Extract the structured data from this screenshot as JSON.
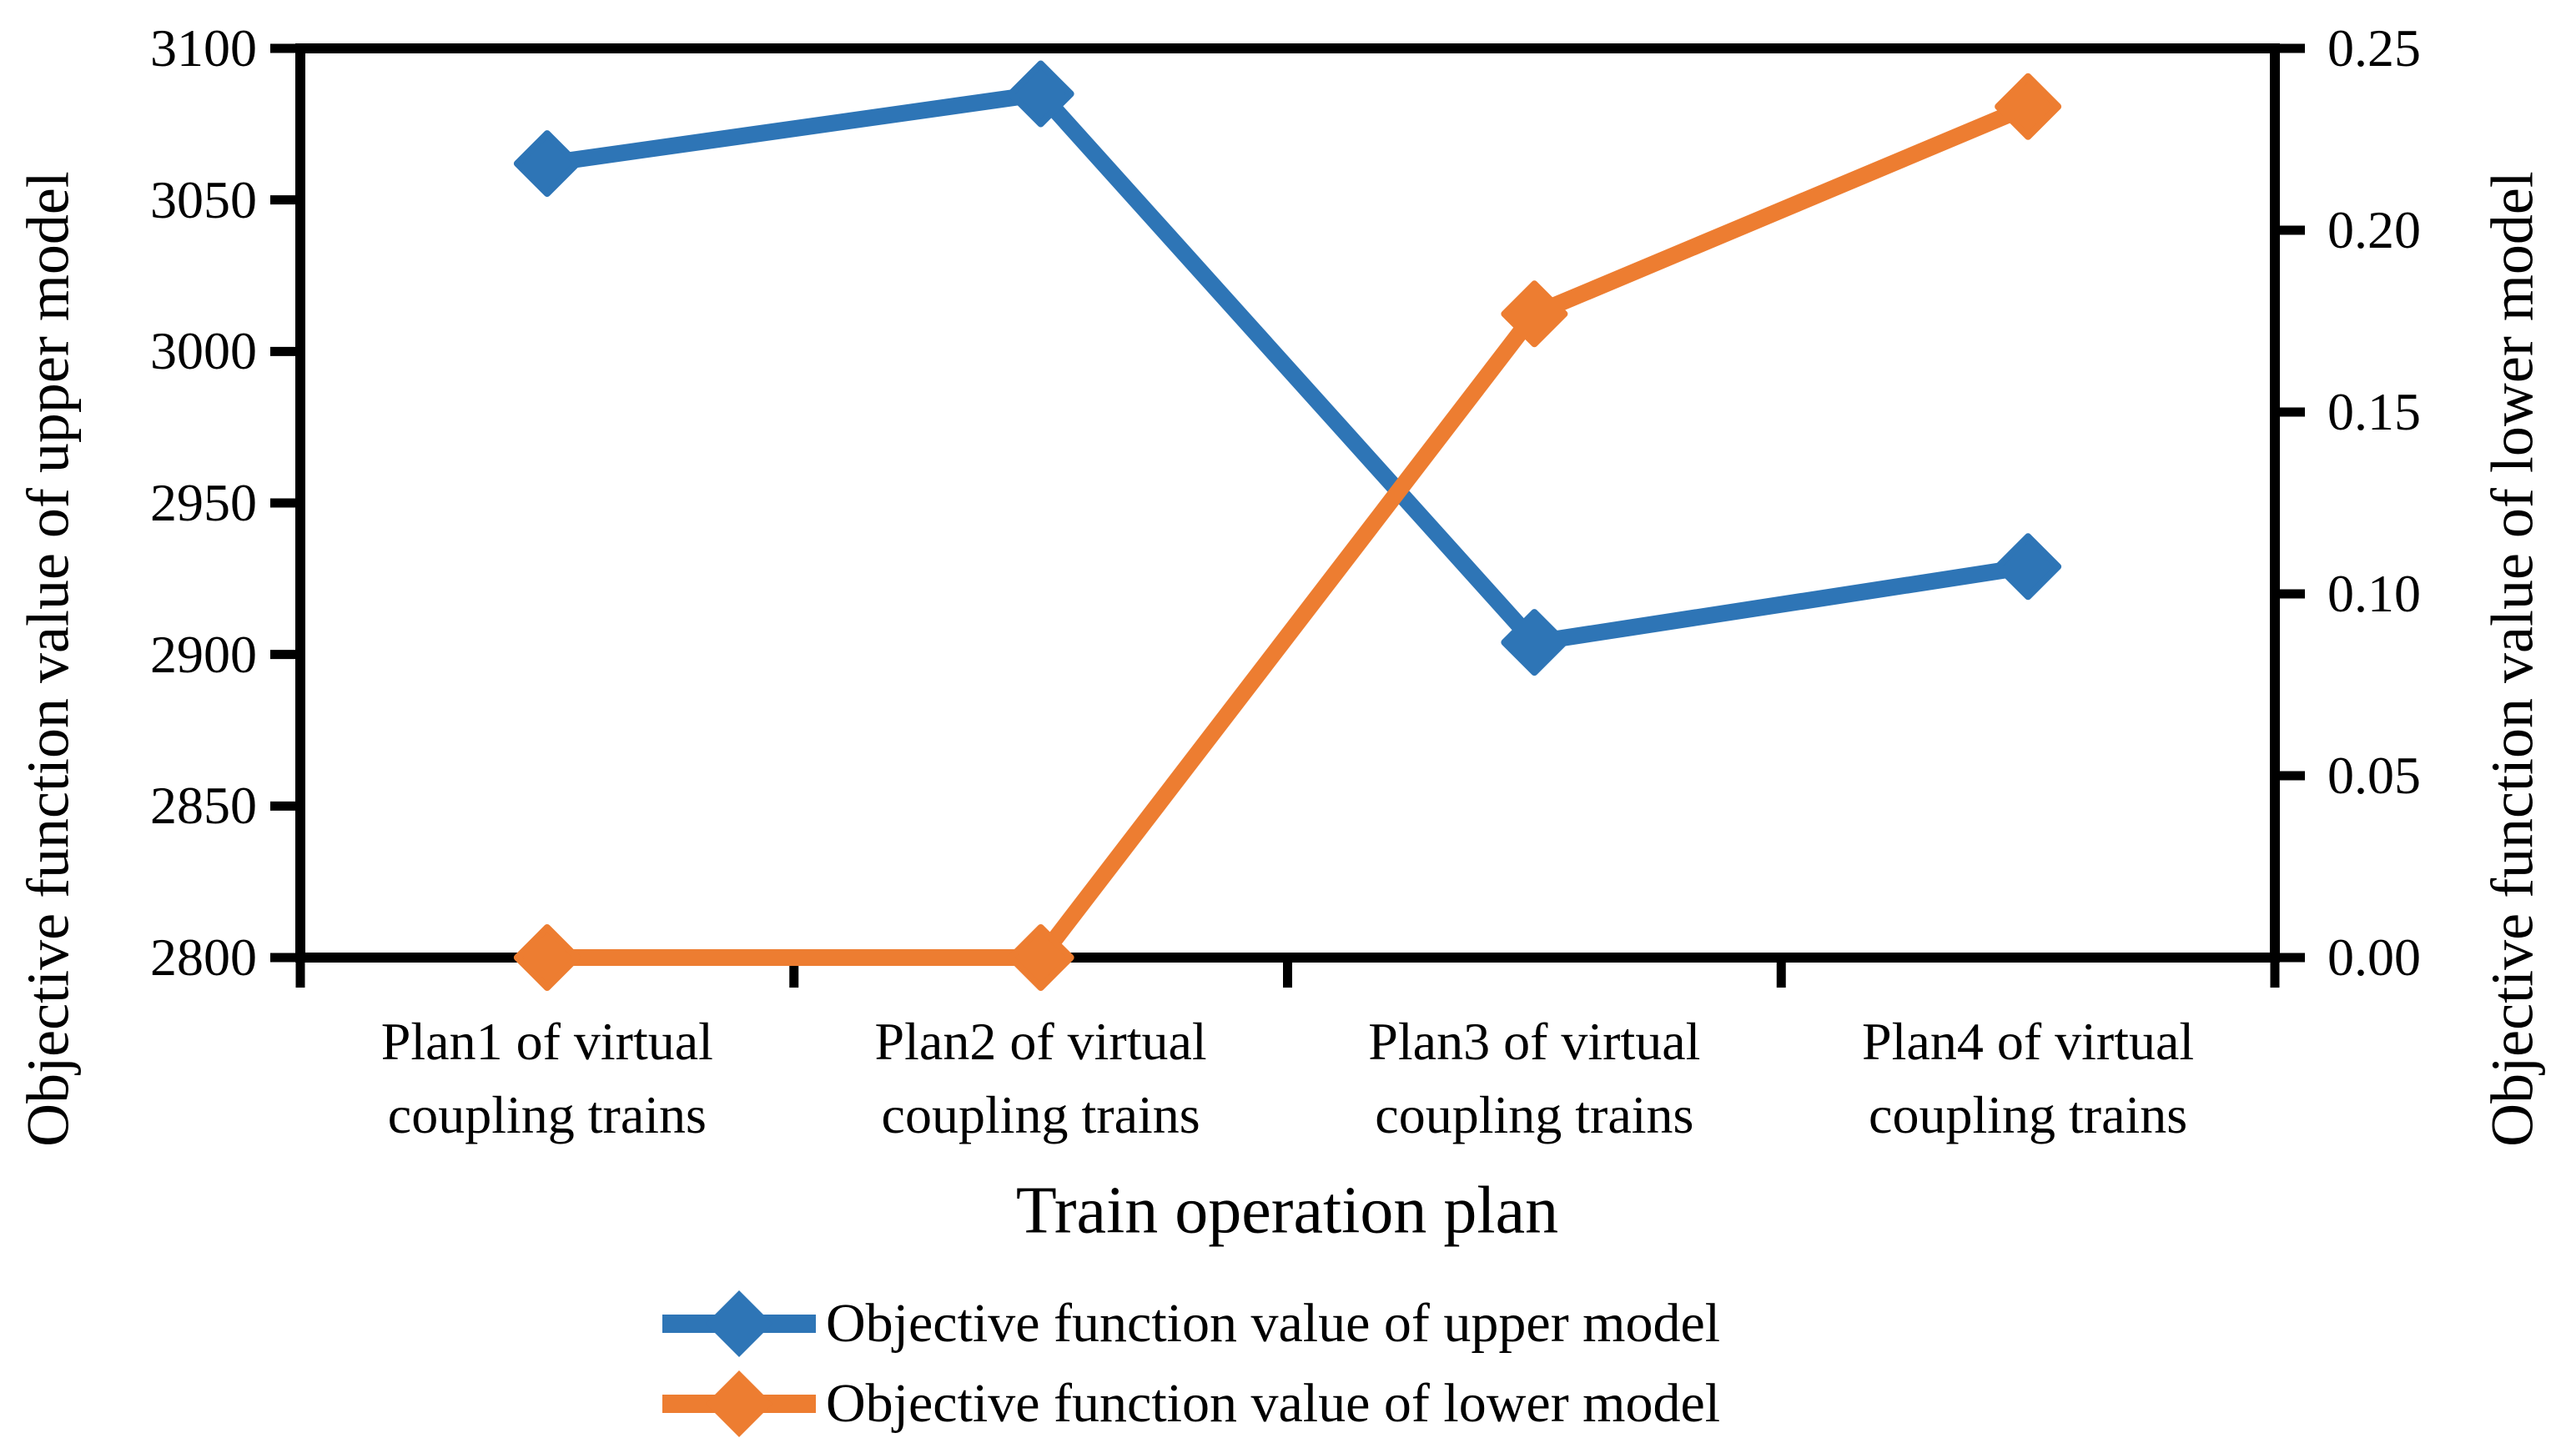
{
  "figure": {
    "background": "#ffffff",
    "axis_color": "#000000",
    "text_color": "#000000"
  },
  "chart_data": {
    "type": "line",
    "grid": false,
    "legend_position": "bottom",
    "x_axis": {
      "title": "Train operation plan",
      "categories": [
        "Plan1 of virtual\ncoupling trains",
        "Plan2 of virtual\ncoupling trains",
        "Plan3 of virtual\ncoupling trains",
        "Plan4 of virtual\ncoupling trains"
      ]
    },
    "left_axis": {
      "title": "Objective function value of upper model",
      "min": 2800,
      "max": 3100,
      "tick_labels": [
        "3100",
        "3050",
        "3000",
        "2950",
        "2900",
        "2850",
        "2800"
      ]
    },
    "right_axis": {
      "title": "Objective function value of lower model",
      "min": 0,
      "max": 0.25,
      "tick_labels": [
        "0.25",
        "0.20",
        "0.15",
        "0.10",
        "0.05",
        "0.00"
      ]
    },
    "series": [
      {
        "name": "Objective function value of upper model",
        "axis": "left",
        "color": "#2E75B6",
        "marker": "diamond",
        "values": [
          3062,
          3085,
          2904,
          2929
        ]
      },
      {
        "name": "Objective function value of lower model",
        "axis": "right",
        "color": "#ED7D31",
        "marker": "diamond",
        "values": [
          0,
          0,
          0.177,
          0.234
        ]
      }
    ]
  }
}
